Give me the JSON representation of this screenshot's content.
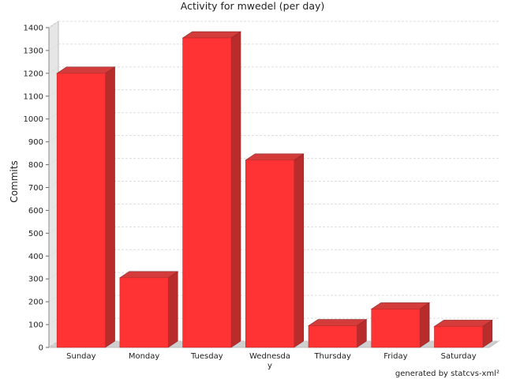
{
  "chart_data": {
    "type": "bar",
    "title": "Activity for mwedel (per day)",
    "xlabel": "",
    "ylabel": "Commits",
    "categories": [
      "Sunday",
      "Monday",
      "Tuesday",
      "Wednesday",
      "Thursday",
      "Friday",
      "Saturday"
    ],
    "values": [
      1200,
      305,
      1355,
      820,
      95,
      168,
      92
    ],
    "ylim": [
      0,
      1400
    ],
    "yticks": [
      0,
      100,
      200,
      300,
      400,
      500,
      600,
      700,
      800,
      900,
      1000,
      1100,
      1200,
      1300,
      1400
    ],
    "grid": true,
    "legend": "none",
    "colors": {
      "bar_front": "#ff3333",
      "bar_side": "#b82c2c",
      "bar_top": "#d43c3c",
      "grid": "#dddddd",
      "wall": "#bbbbbb",
      "floor": "#cfcfcf"
    }
  },
  "footer": {
    "text": "generated by statcvs-xml²"
  }
}
